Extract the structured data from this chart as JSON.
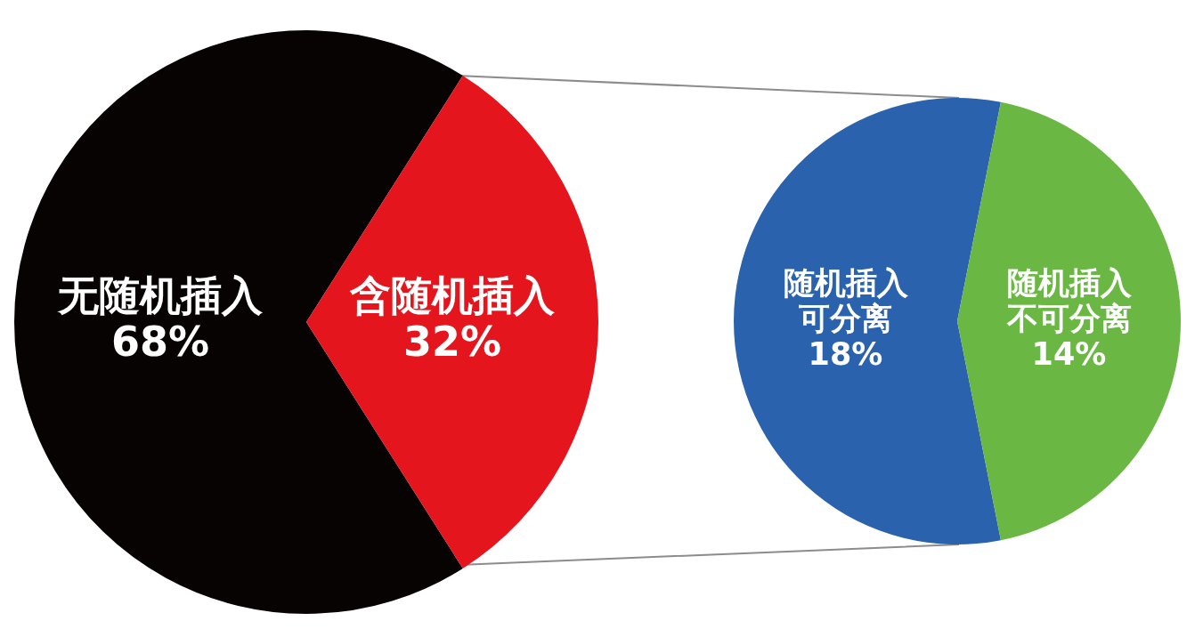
{
  "chart_data": [
    {
      "type": "pie",
      "categories": [
        "无随机插入",
        "含随机插入"
      ],
      "values": [
        68,
        32
      ],
      "colors": [
        "#070303",
        "#e5151e"
      ],
      "value_labels": [
        "68%",
        "32%"
      ],
      "legend": false
    },
    {
      "type": "pie",
      "categories": [
        "随机插入可分离",
        "随机插入不可分离"
      ],
      "values": [
        18,
        14
      ],
      "colors": [
        "#2a62ad",
        "#6ab743"
      ],
      "value_labels": [
        "18%",
        "14%"
      ],
      "legend": false
    }
  ]
}
